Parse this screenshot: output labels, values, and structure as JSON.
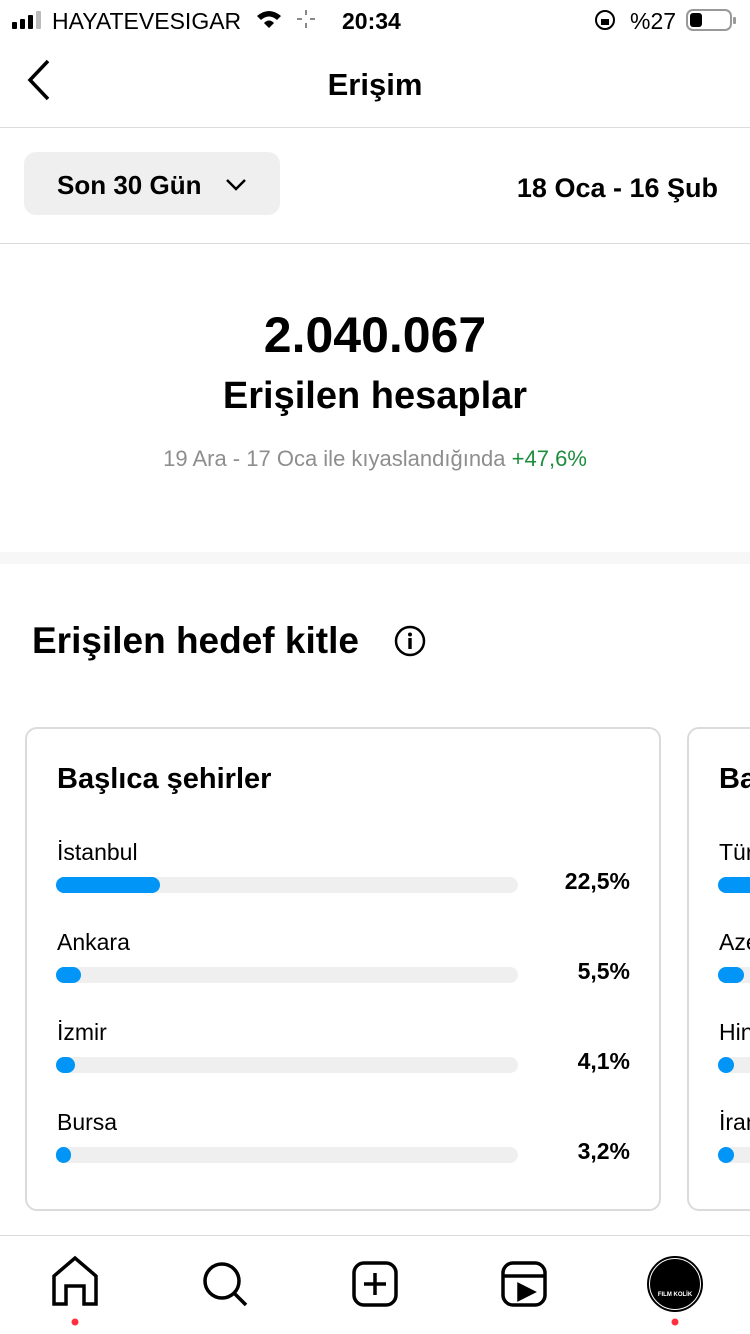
{
  "status_bar": {
    "carrier": "HAYATEVESIGAR",
    "time": "20:34",
    "battery": "%27"
  },
  "header": {
    "title": "Erişim"
  },
  "filter": {
    "period": "Son 30 Gün",
    "date_range": "18 Oca - 16 Şub"
  },
  "summary": {
    "total": "2.040.067",
    "label": "Erişilen hesaplar",
    "comparison": "19 Ara - 17 Oca ile kıyaslandığında",
    "change": "+47,6%"
  },
  "audience": {
    "title": "Erişilen hedef kitle",
    "cities_card": {
      "title": "Başlıca şehirler",
      "xlim": [
        0,
        100
      ],
      "color": "#0095f6",
      "rows": [
        {
          "name": "İstanbul",
          "value": 22.5,
          "label": "22,5%"
        },
        {
          "name": "Ankara",
          "value": 5.5,
          "label": "5,5%"
        },
        {
          "name": "İzmir",
          "value": 4.1,
          "label": "4,1%"
        },
        {
          "name": "Bursa",
          "value": 3.2,
          "label": "3,2%"
        }
      ]
    },
    "second_card": {
      "title": "Ba",
      "rows": [
        "Tür",
        "Aze",
        "Hin",
        "İran"
      ]
    }
  },
  "nav": {
    "profile_label": "FILM KOLİK"
  }
}
